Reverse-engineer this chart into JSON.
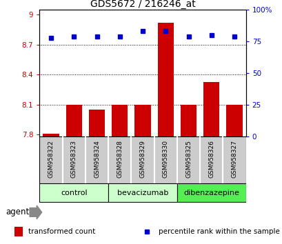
{
  "title": "GDS5672 / 216246_at",
  "samples": [
    "GSM958322",
    "GSM958323",
    "GSM958324",
    "GSM958328",
    "GSM958329",
    "GSM958330",
    "GSM958325",
    "GSM958326",
    "GSM958327"
  ],
  "transformed_counts": [
    7.81,
    8.1,
    8.05,
    8.1,
    8.1,
    8.92,
    8.1,
    8.33,
    8.1
  ],
  "percentile_ranks": [
    78,
    79,
    79,
    79,
    83,
    83,
    79,
    80,
    79
  ],
  "groups": [
    {
      "label": "control",
      "indices": [
        0,
        1,
        2
      ],
      "color": "#ccffcc"
    },
    {
      "label": "bevacizumab",
      "indices": [
        3,
        4,
        5
      ],
      "color": "#ccffcc"
    },
    {
      "label": "dibenzazepine",
      "indices": [
        6,
        7,
        8
      ],
      "color": "#55ee55"
    }
  ],
  "bar_color": "#cc0000",
  "dot_color": "#0000cc",
  "ylim_left": [
    7.78,
    9.05
  ],
  "ylim_right": [
    0,
    100
  ],
  "yticks_left": [
    7.8,
    8.1,
    8.4,
    8.7,
    9.0
  ],
  "yticks_right": [
    0,
    25,
    50,
    75,
    100
  ],
  "ytick_labels_left": [
    "7.8",
    "8.1",
    "8.4",
    "8.7",
    "9"
  ],
  "ytick_labels_right": [
    "0",
    "25",
    "50",
    "75",
    "100%"
  ],
  "grid_values": [
    8.1,
    8.4,
    8.7
  ],
  "bar_bottom": 7.78,
  "sample_area_color": "#cccccc",
  "agent_label": "agent"
}
